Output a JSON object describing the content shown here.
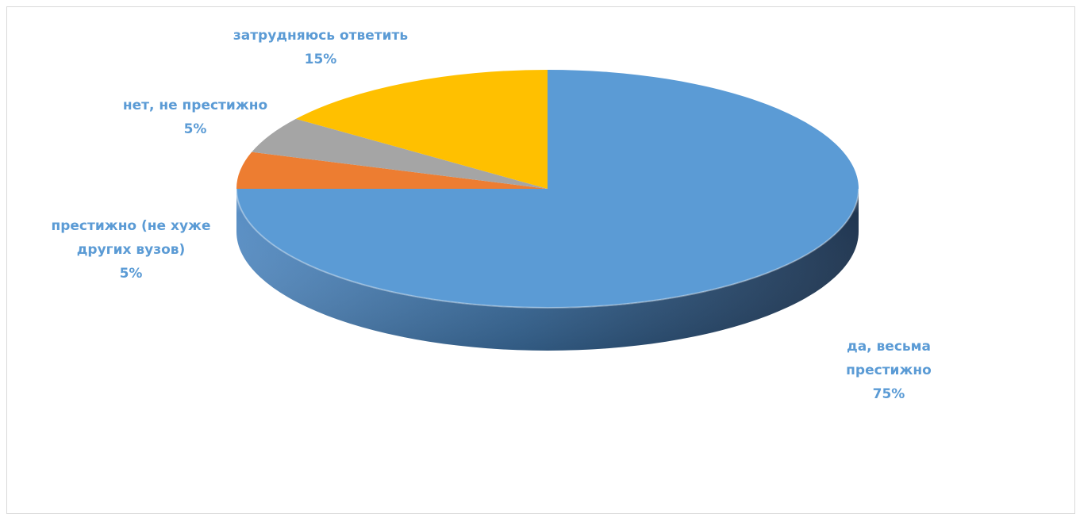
{
  "chart_data": {
    "type": "pie",
    "title": "",
    "legend": "none",
    "slices": [
      {
        "label_lines": [
          "да, весьма",
          "престижно"
        ],
        "percent_label": "75%",
        "value": 75,
        "color": "#5b9bd5",
        "side_color": "#41729f"
      },
      {
        "label_lines": [
          "престижно (не хуже",
          "других вузов)"
        ],
        "percent_label": "5%",
        "value": 5,
        "color": "#ed7d31",
        "side_color": "#b35c22"
      },
      {
        "label_lines": [
          "нет, не престижно"
        ],
        "percent_label": "5%",
        "value": 5,
        "color": "#a5a5a5",
        "side_color": "#7c7c7c"
      },
      {
        "label_lines": [
          "затрудняюсь ответить"
        ],
        "percent_label": "15%",
        "value": 15,
        "color": "#ffc000",
        "side_color": "#bf9000"
      }
    ]
  }
}
